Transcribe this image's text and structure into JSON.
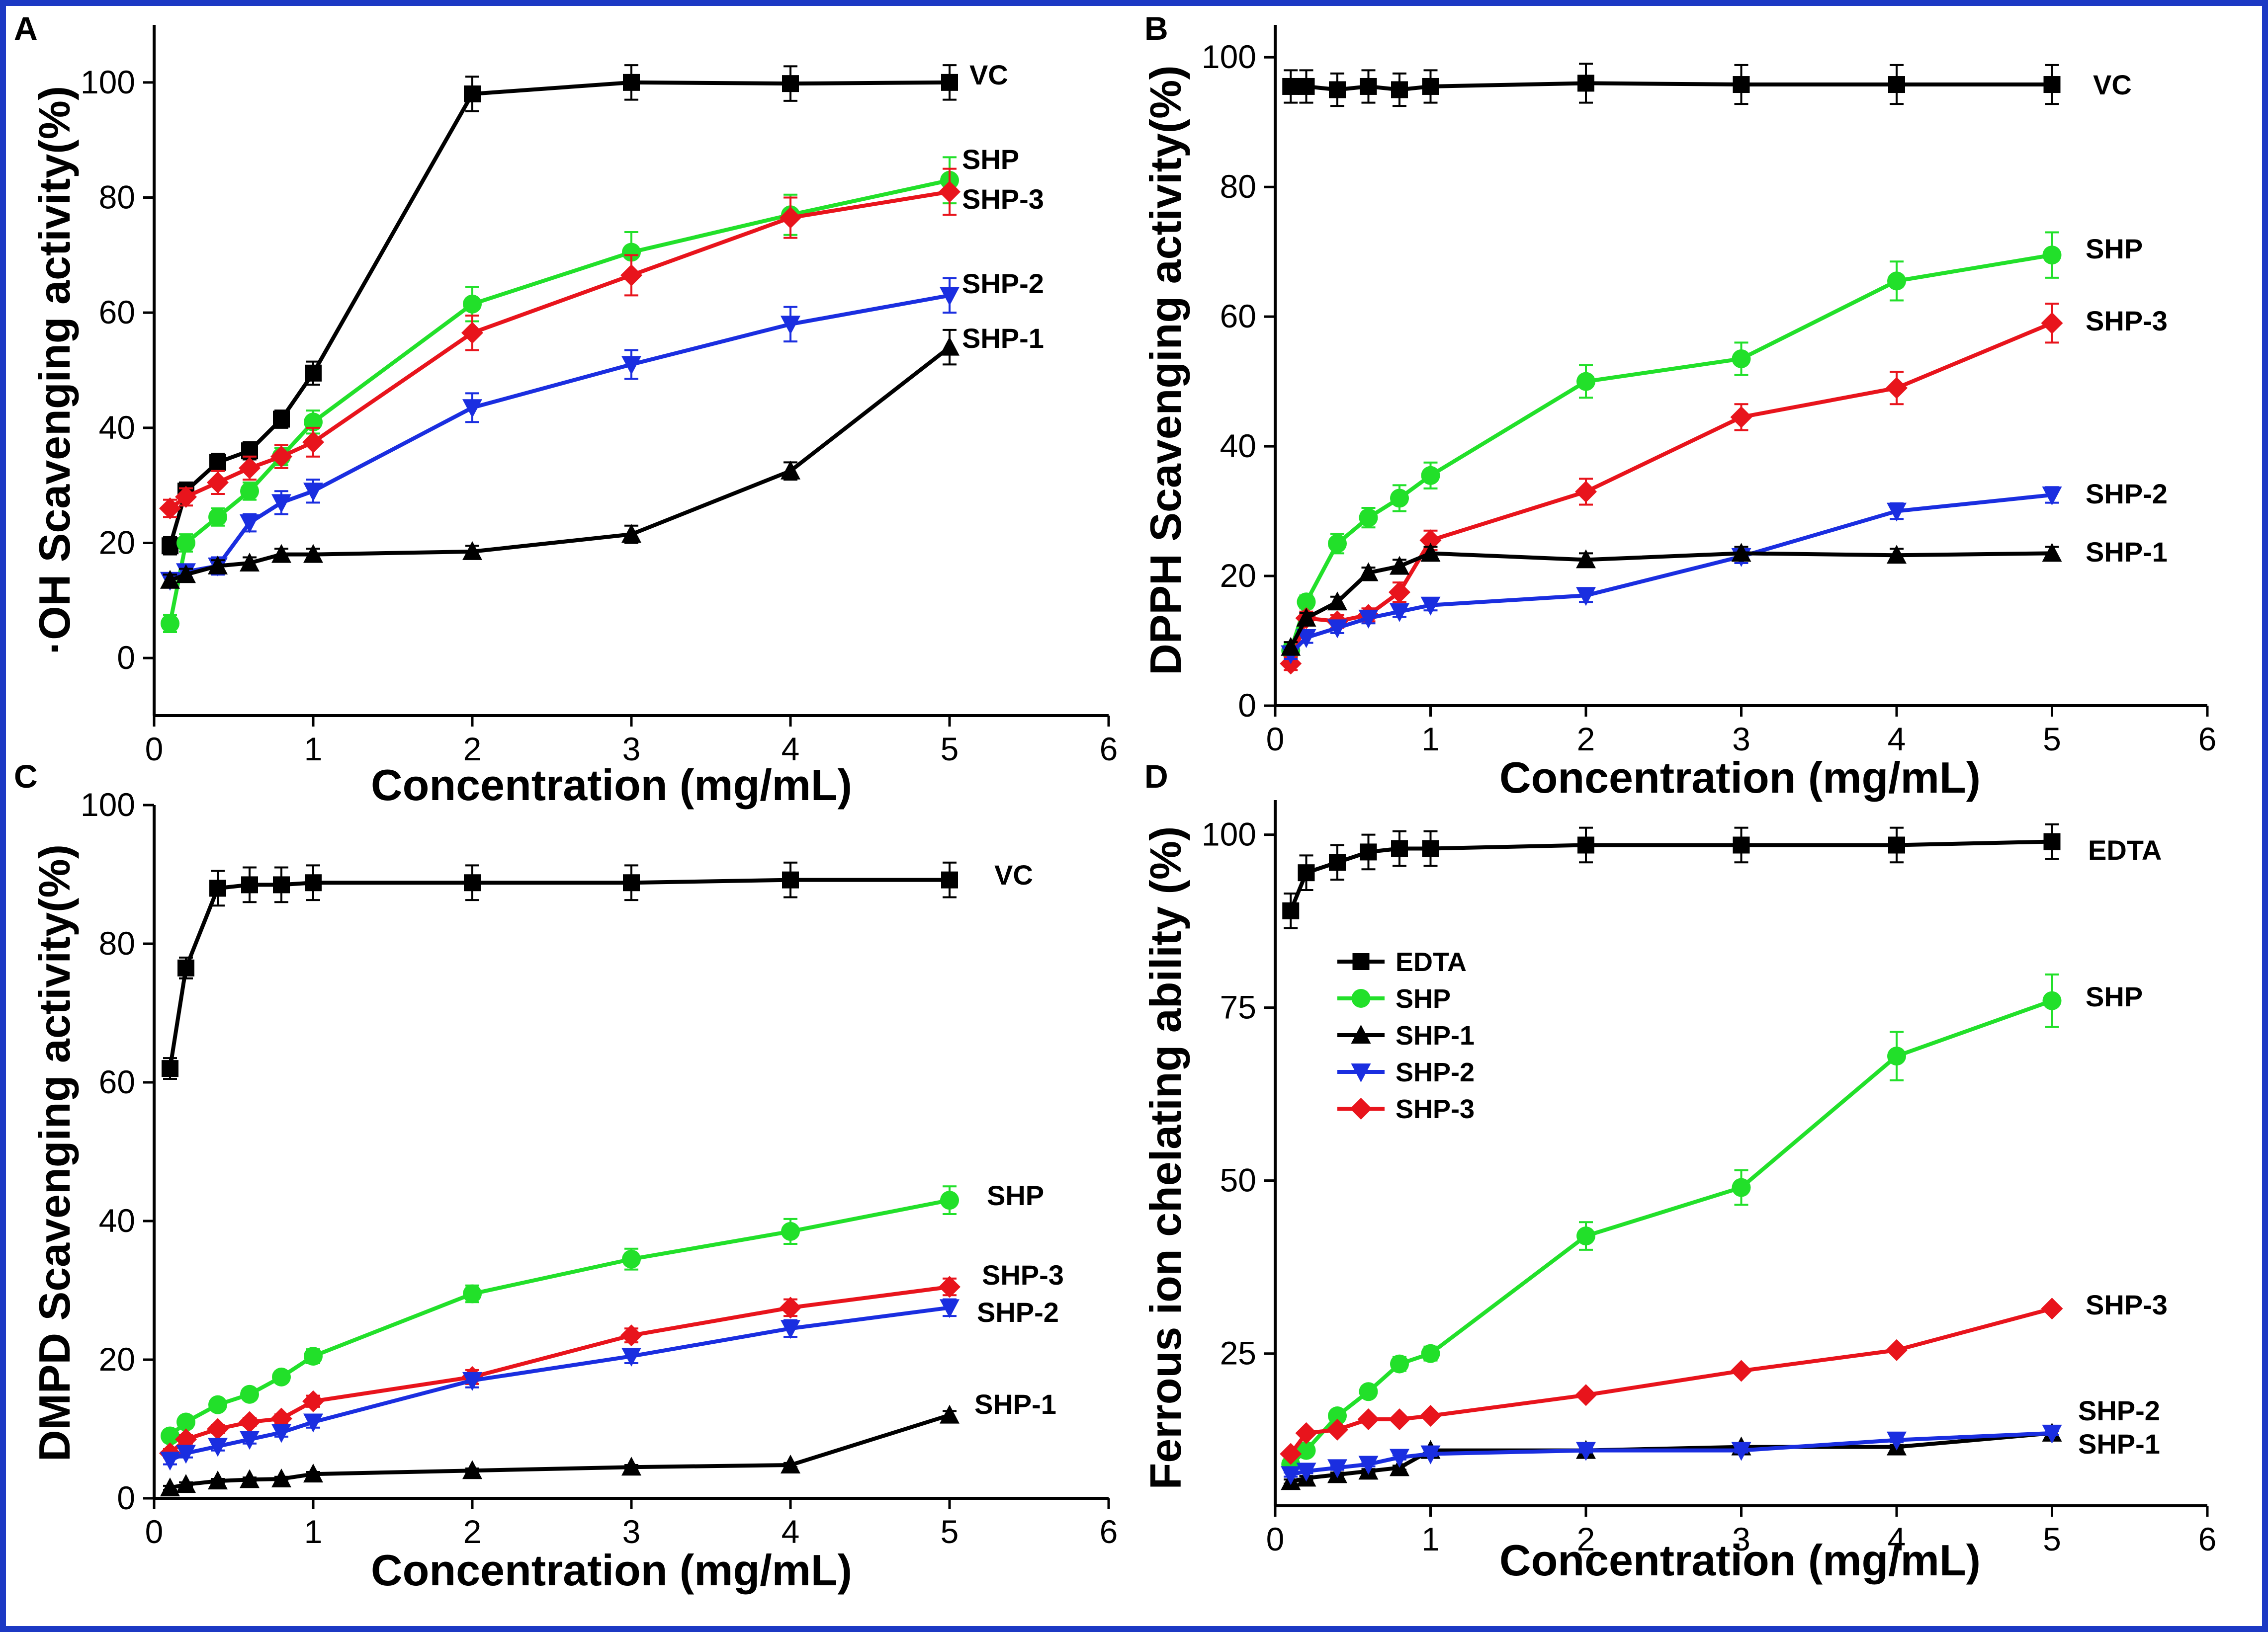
{
  "chart_data": [
    {
      "type": "line",
      "panel": "A",
      "xlabel": "Concentration (mg/mL)",
      "ylabel": "·OH Scavenging activity(%)",
      "xlim": [
        0,
        6
      ],
      "ylim": [
        -10,
        110
      ],
      "xticks": [
        0,
        1,
        2,
        3,
        4,
        5,
        6
      ],
      "yticks": [
        0,
        20,
        40,
        60,
        80,
        100
      ],
      "x": [
        0.1,
        0.2,
        0.4,
        0.6,
        0.8,
        1,
        2,
        3,
        4,
        5
      ],
      "series": [
        {
          "name": "VC",
          "color": "#000000",
          "marker": "square",
          "values": [
            19.5,
            29,
            34,
            36,
            41.5,
            49.5,
            98,
            100,
            99.8,
            100
          ],
          "errors": [
            1.5,
            1.5,
            1.5,
            1.5,
            1.5,
            2,
            3,
            3,
            3,
            3
          ]
        },
        {
          "name": "SHP",
          "color": "#22e02a",
          "marker": "circle",
          "values": [
            6,
            20,
            24.5,
            29,
            35,
            41,
            61.5,
            70.5,
            77,
            83
          ],
          "errors": [
            1.5,
            1.5,
            1.5,
            1.5,
            1.5,
            2,
            3,
            3.5,
            3.5,
            4
          ]
        },
        {
          "name": "SHP-3",
          "color": "#e8141c",
          "marker": "diamond",
          "values": [
            26,
            28,
            30.5,
            33,
            35,
            37.5,
            56.5,
            66.5,
            76.5,
            81
          ],
          "errors": [
            1.5,
            1.5,
            2,
            2,
            2,
            2.5,
            3,
            3.5,
            3.5,
            4
          ]
        },
        {
          "name": "SHP-2",
          "color": "#1a2ee0",
          "marker": "triangle-down",
          "values": [
            13.5,
            15,
            16,
            23.5,
            27,
            29,
            43.5,
            51,
            58,
            63
          ],
          "errors": [
            1,
            1,
            1.5,
            1.5,
            2,
            2,
            2.5,
            2.5,
            3,
            3
          ]
        },
        {
          "name": "SHP-1",
          "color": "#000000",
          "marker": "triangle-up",
          "values": [
            13.5,
            14.5,
            16,
            16.5,
            18,
            18,
            18.5,
            21.5,
            32.5,
            54
          ],
          "errors": [
            1,
            1,
            1,
            1,
            1,
            1,
            1,
            1.5,
            1.5,
            3
          ]
        }
      ]
    },
    {
      "type": "line",
      "panel": "B",
      "xlabel": "Concentration (mg/mL)",
      "ylabel": "DPPH Scavenging activity(%)",
      "xlim": [
        0,
        6
      ],
      "ylim": [
        0,
        105
      ],
      "xticks": [
        0,
        1,
        2,
        3,
        4,
        5,
        6
      ],
      "yticks": [
        0,
        20,
        40,
        60,
        80,
        100
      ],
      "x": [
        0.1,
        0.2,
        0.4,
        0.6,
        0.8,
        1,
        2,
        3,
        4,
        5
      ],
      "series": [
        {
          "name": "VC",
          "color": "#000000",
          "marker": "square",
          "values": [
            95.5,
            95.5,
            95,
            95.5,
            95,
            95.5,
            96,
            95.8,
            95.8,
            95.8
          ],
          "errors": [
            2.5,
            2.5,
            2.5,
            2.5,
            2.5,
            2.5,
            3,
            3,
            3,
            3
          ]
        },
        {
          "name": "SHP",
          "color": "#22e02a",
          "marker": "circle",
          "values": [
            8.5,
            16,
            25,
            29,
            32,
            35.5,
            50,
            53.5,
            65.5,
            69.5
          ],
          "errors": [
            1,
            1,
            1.5,
            1.5,
            2,
            2,
            2.5,
            2.5,
            3,
            3.5
          ]
        },
        {
          "name": "SHP-3",
          "color": "#e8141c",
          "marker": "diamond",
          "values": [
            6.5,
            13.5,
            13,
            14,
            17.5,
            25.5,
            33,
            44.5,
            49,
            59
          ],
          "errors": [
            1,
            1,
            1,
            1,
            1.5,
            1.5,
            2,
            2,
            2.5,
            3
          ]
        },
        {
          "name": "SHP-2",
          "color": "#1a2ee0",
          "marker": "triangle-down",
          "values": [
            8,
            10.5,
            12,
            13.5,
            14.5,
            15.5,
            17,
            23,
            30,
            32.5
          ],
          "errors": [
            0.8,
            0.8,
            0.8,
            0.8,
            0.8,
            0.8,
            1,
            1,
            1.2,
            1.2
          ]
        },
        {
          "name": "SHP-1",
          "color": "#000000",
          "marker": "triangle-up",
          "values": [
            9,
            13.5,
            16,
            20.5,
            21.5,
            23.5,
            22.5,
            23.5,
            23.2,
            23.5
          ],
          "errors": [
            0.8,
            0.8,
            0.8,
            0.8,
            1,
            1,
            1,
            1,
            1,
            1
          ]
        }
      ]
    },
    {
      "type": "line",
      "panel": "C",
      "xlabel": "Concentration (mg/mL)",
      "ylabel": "DMPD Scavenging activity(%)",
      "xlim": [
        0,
        6
      ],
      "ylim": [
        0,
        100
      ],
      "xticks": [
        0,
        1,
        2,
        3,
        4,
        5,
        6
      ],
      "yticks": [
        0,
        20,
        40,
        60,
        80,
        100
      ],
      "x": [
        0.1,
        0.2,
        0.4,
        0.6,
        0.8,
        1,
        2,
        3,
        4,
        5
      ],
      "series": [
        {
          "name": "VC",
          "color": "#000000",
          "marker": "square",
          "values": [
            62,
            76.5,
            88,
            88.5,
            88.5,
            88.8,
            88.8,
            88.8,
            89.2,
            89.2
          ],
          "errors": [
            1.5,
            1.5,
            2.5,
            2.5,
            2.5,
            2.5,
            2.5,
            2.5,
            2.5,
            2.5
          ]
        },
        {
          "name": "SHP",
          "color": "#22e02a",
          "marker": "circle",
          "values": [
            9,
            11,
            13.5,
            15,
            17.5,
            20.5,
            29.5,
            34.5,
            38.5,
            43
          ],
          "errors": [
            0.8,
            0.8,
            0.8,
            0.8,
            0.8,
            1,
            1.2,
            1.5,
            1.8,
            2
          ]
        },
        {
          "name": "SHP-3",
          "color": "#e8141c",
          "marker": "diamond",
          "values": [
            6.5,
            8.5,
            10,
            11,
            11.5,
            14,
            17.5,
            23.5,
            27.5,
            30.5
          ],
          "errors": [
            0.6,
            0.6,
            0.6,
            0.6,
            0.6,
            0.8,
            1,
            1,
            1.2,
            1.2
          ]
        },
        {
          "name": "SHP-2",
          "color": "#1a2ee0",
          "marker": "triangle-down",
          "values": [
            5.5,
            6.5,
            7.5,
            8.5,
            9.5,
            11,
            17,
            20.5,
            24.5,
            27.5
          ],
          "errors": [
            0.6,
            0.6,
            0.6,
            0.6,
            0.6,
            0.8,
            1,
            1,
            1.2,
            1.2
          ]
        },
        {
          "name": "SHP-1",
          "color": "#000000",
          "marker": "triangle-up",
          "values": [
            1.5,
            2,
            2.5,
            2.7,
            2.8,
            3.5,
            4,
            4.5,
            4.8,
            12
          ],
          "errors": [
            0.3,
            0.3,
            0.3,
            0.3,
            0.3,
            0.3,
            0.3,
            0.3,
            0.3,
            0.6
          ]
        }
      ]
    },
    {
      "type": "line",
      "panel": "D",
      "xlabel": "Concentration (mg/mL)",
      "ylabel": "Ferrous ion chelating ability (%)",
      "xlim": [
        0,
        6
      ],
      "ylim": [
        3,
        105
      ],
      "xticks": [
        0,
        1,
        2,
        3,
        4,
        5,
        6
      ],
      "yticks": [
        25,
        50,
        75,
        100
      ],
      "legend": "upper-left",
      "x": [
        0.1,
        0.2,
        0.4,
        0.6,
        0.8,
        1,
        2,
        3,
        4,
        5
      ],
      "series": [
        {
          "name": "EDTA",
          "color": "#000000",
          "marker": "square",
          "values": [
            89,
            94.5,
            96,
            97.5,
            98,
            98,
            98.5,
            98.5,
            98.5,
            99
          ],
          "errors": [
            2.5,
            2.5,
            2.5,
            2.5,
            2.5,
            2.5,
            2.5,
            2.5,
            2.5,
            2.5
          ]
        },
        {
          "name": "SHP",
          "color": "#22e02a",
          "marker": "circle",
          "values": [
            9,
            11,
            16,
            19.5,
            23.5,
            25,
            42,
            49,
            68,
            76
          ],
          "errors": [
            0.8,
            0.8,
            0.8,
            0.8,
            1,
            1,
            2,
            2.5,
            3.5,
            3.8
          ]
        },
        {
          "name": "SHP-1",
          "color": "#000000",
          "marker": "triangle-up",
          "values": [
            6.5,
            7,
            7.5,
            8,
            8.5,
            11,
            11,
            11.5,
            11.5,
            13.5
          ],
          "errors": [
            0.3,
            0.3,
            0.3,
            0.3,
            0.3,
            0.3,
            0.3,
            0.3,
            0.3,
            0.3
          ]
        },
        {
          "name": "SHP-2",
          "color": "#1a2ee0",
          "marker": "triangle-down",
          "values": [
            7.5,
            8,
            8.5,
            9,
            10,
            10.5,
            11,
            11,
            12.5,
            13.5
          ],
          "errors": [
            0.3,
            0.3,
            0.3,
            0.3,
            0.3,
            0.3,
            0.3,
            0.3,
            0.3,
            0.3
          ]
        },
        {
          "name": "SHP-3",
          "color": "#e8141c",
          "marker": "diamond",
          "values": [
            10.5,
            13.5,
            14,
            15.5,
            15.5,
            16,
            19,
            22.5,
            25.5,
            31.5
          ],
          "errors": [
            0.3,
            0.3,
            0.3,
            0.3,
            0.3,
            0.3,
            0.3,
            0.3,
            0.3,
            0.3
          ]
        }
      ]
    }
  ]
}
